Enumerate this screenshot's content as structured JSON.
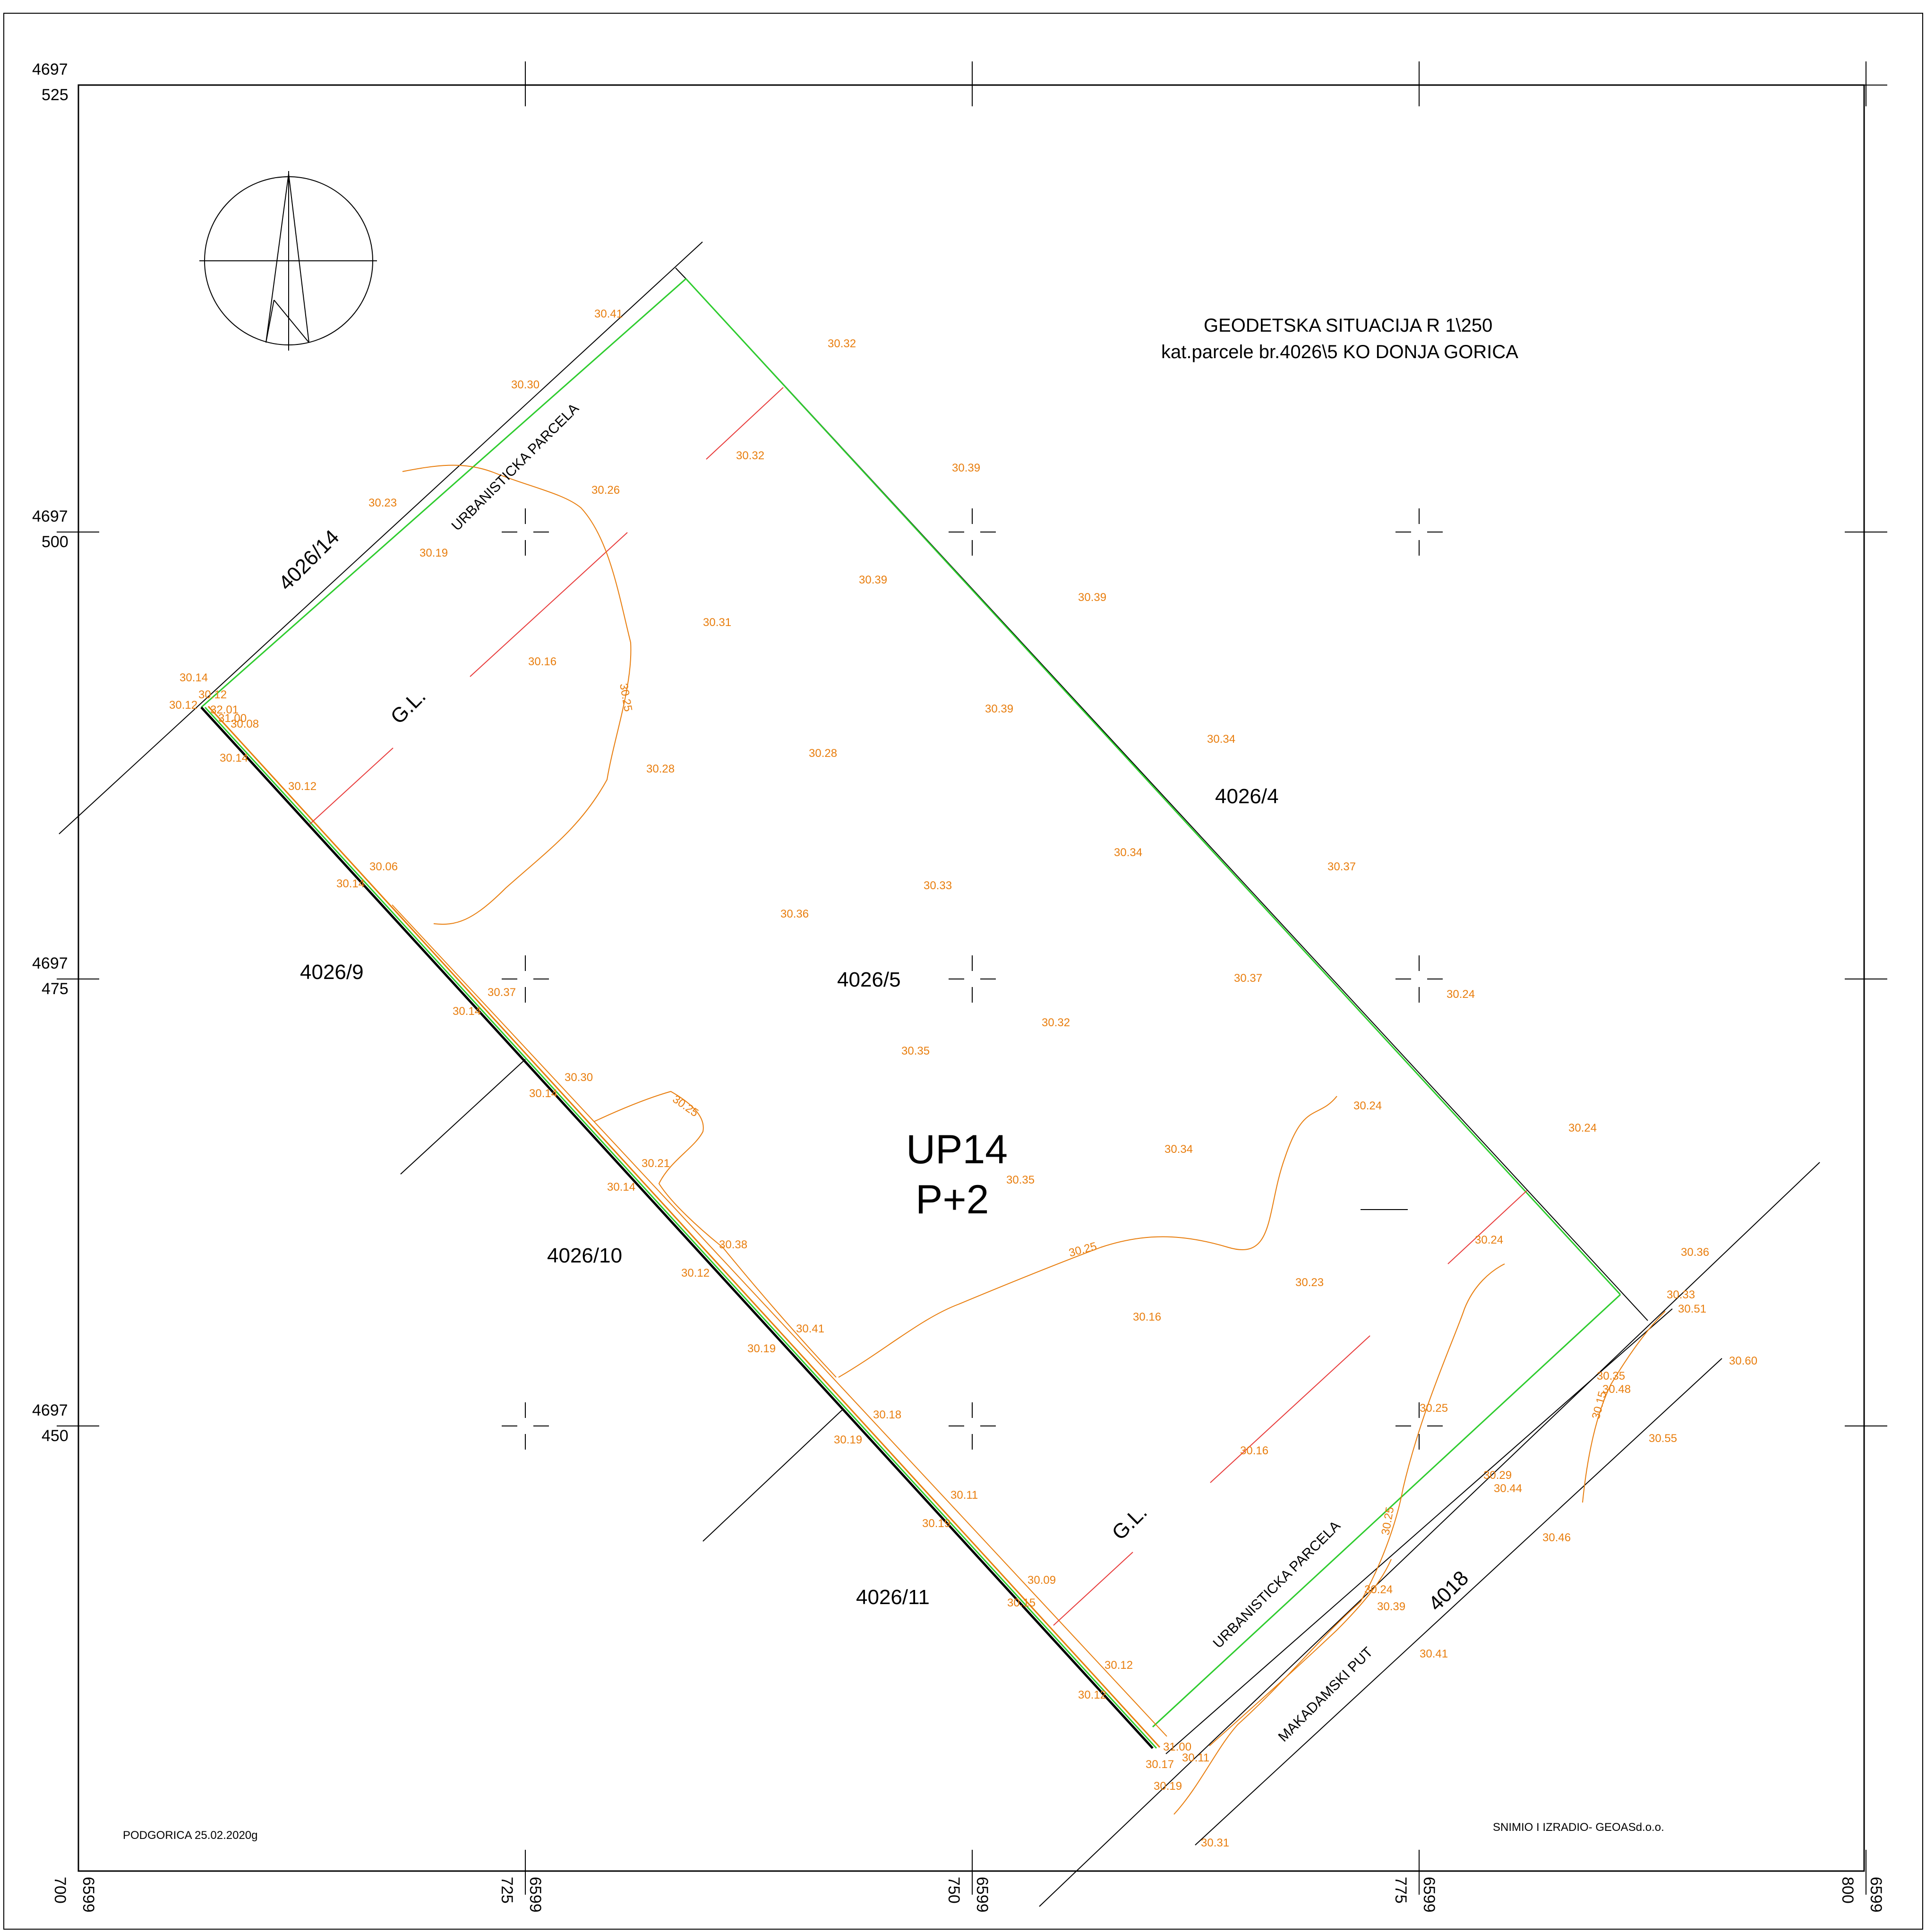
{
  "title": {
    "line1": "GEODETSKA SITUACIJA R 1\\250",
    "line2": "kat.parcele br.4026\\5 KO DONJA  GORICA"
  },
  "footer": {
    "place_date": "PODGORICA 25.02.2020g",
    "author": "SNIMIO I IZRADIO- GEOASd.o.o."
  },
  "grid": {
    "y_labels": [
      {
        "top": "4697",
        "bottom": "525"
      },
      {
        "top": "4697",
        "bottom": "500"
      },
      {
        "top": "4697",
        "bottom": "475"
      },
      {
        "top": "4697",
        "bottom": "450"
      }
    ],
    "x_labels": [
      {
        "a": "6599",
        "b": "700"
      },
      {
        "a": "6599",
        "b": "725"
      },
      {
        "a": "6599",
        "b": "750"
      },
      {
        "a": "6599",
        "b": "775"
      },
      {
        "a": "6599",
        "b": "800"
      }
    ]
  },
  "parcels": {
    "main": "4026/5",
    "p14": "4026/14",
    "p4": "4026/4",
    "p9": "4026/9",
    "p10": "4026/10",
    "p11": "4026/11",
    "road": "4018"
  },
  "up_label": {
    "line1": "UP14",
    "line2": "P+2"
  },
  "annotations": {
    "urb1": "URBANISTICKA PARCELA",
    "urb2": "URBANISTICKA PARCELA",
    "gl1": "G.L.",
    "gl2": "G.L.",
    "road_name": "MAKADAMSKI PUT"
  },
  "contours": {
    "c1": "30.25",
    "c2": "30.25",
    "c3": "30.25",
    "c4": "30.25",
    "c5": "30.15"
  },
  "elevations": [
    "30.41",
    "30.30",
    "30.23",
    "30.26",
    "30.19",
    "30.32",
    "30.32",
    "30.39",
    "30.39",
    "30.31",
    "30.39",
    "30.16",
    "30.14",
    "30.12",
    "30.12",
    "31.00",
    "30.08",
    "30.14",
    "30.28",
    "30.28",
    "30.39",
    "30.34",
    "30.12",
    "30.06",
    "30.14",
    "30.36",
    "30.33",
    "30.34",
    "30.37",
    "30.37",
    "30.14",
    "30.37",
    "30.24",
    "30.32",
    "30.35",
    "30.30",
    "30.14",
    "30.24",
    "30.24",
    "30.21",
    "30.14",
    "30.35",
    "30.34",
    "30.38",
    "30.12",
    "30.24",
    "30.23",
    "30.36",
    "30.33",
    "30.51",
    "30.41",
    "30.19",
    "30.16",
    "30.60",
    "30.18",
    "30.19",
    "30.35",
    "30.48",
    "30.25",
    "30.16",
    "30.11",
    "30.55",
    "30.19",
    "30.29",
    "30.44",
    "30.09",
    "30.15",
    "30.24",
    "30.39",
    "30.46",
    "30.12",
    "30.12",
    "30.41",
    "31.00",
    "30.11",
    "30.17",
    "30.19",
    "30.31",
    "32.01"
  ]
}
